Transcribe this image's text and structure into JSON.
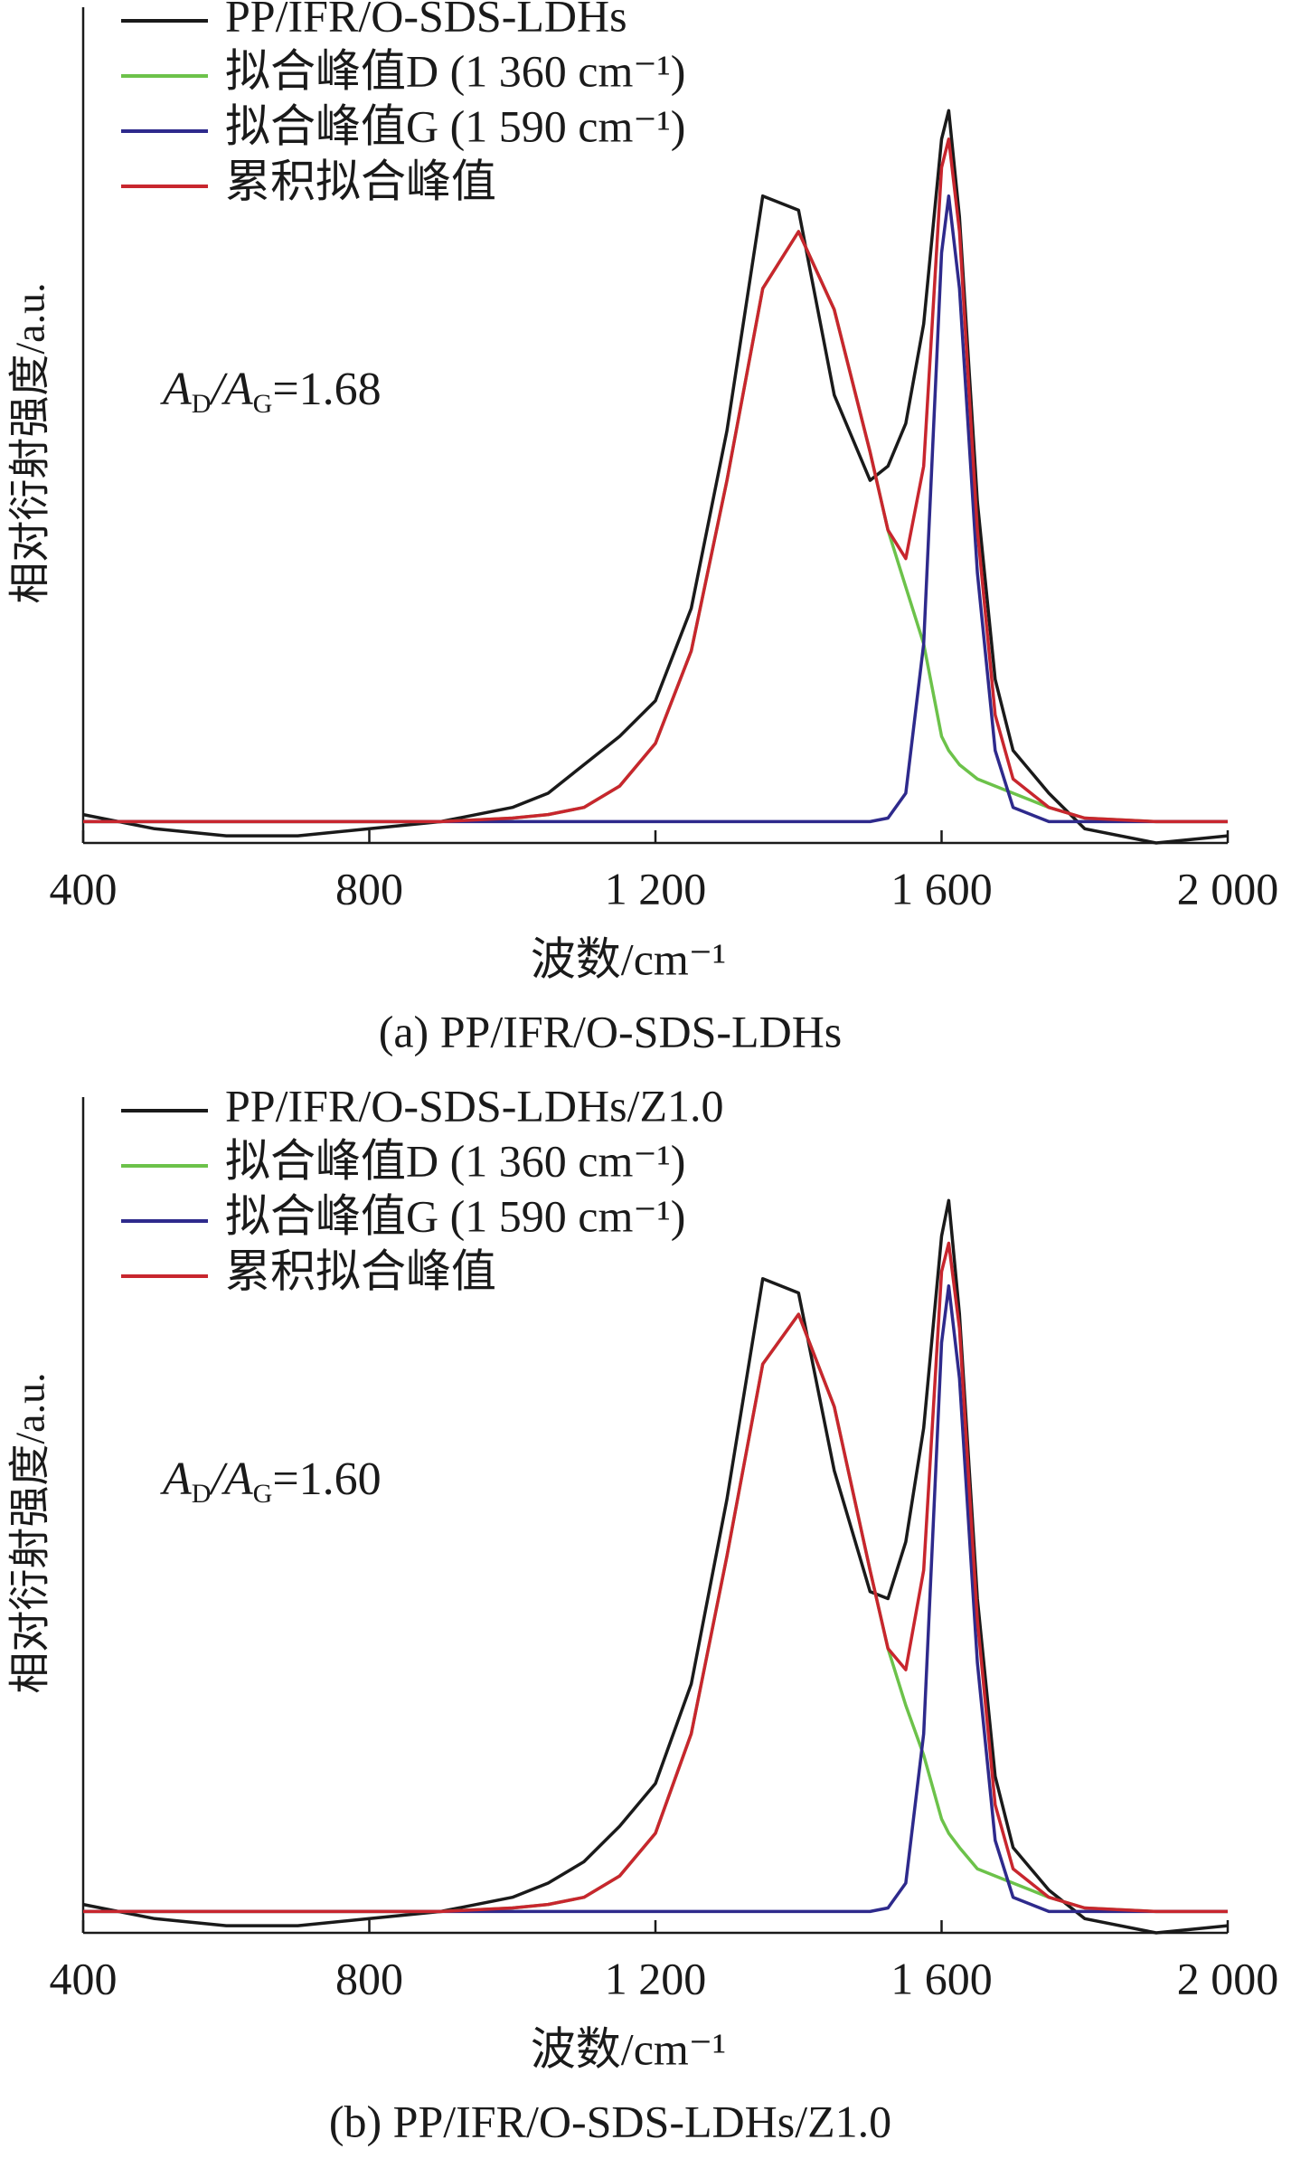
{
  "chart_data": [
    {
      "type": "line",
      "caption": "(a) PP/IFR/O-SDS-LDHs",
      "xlabel": "波数/cm⁻¹",
      "ylabel": "相对衍射强度/a.u.",
      "annotation": [
        "A",
        "D",
        "/A",
        "G",
        "=1.68"
      ],
      "xlim": [
        400,
        2000
      ],
      "xticks": [
        400,
        800,
        {
          "value": 1200,
          "label": "1 200"
        },
        {
          "value": 1600,
          "label": "1 600"
        },
        {
          "value": 2000,
          "label": "2 000"
        }
      ],
      "ylim": [
        -3,
        112
      ],
      "x": [
        400,
        500,
        600,
        700,
        800,
        900,
        1000,
        1050,
        1100,
        1150,
        1200,
        1250,
        1300,
        1350,
        1400,
        1450,
        1500,
        1525,
        1550,
        1575,
        1600,
        1610,
        1625,
        1650,
        1675,
        1700,
        1750,
        1800,
        1900,
        2000
      ],
      "series": [
        {
          "name": "PP/IFR/O-SDS-LDHs",
          "color": "#1a1a1a",
          "values": [
            1,
            -1,
            -2,
            -2,
            -1,
            0,
            2,
            4,
            8,
            12,
            17,
            30,
            55,
            88,
            86,
            60,
            48,
            50,
            56,
            70,
            96,
            100,
            85,
            45,
            20,
            10,
            4,
            -1,
            -3,
            -2
          ]
        },
        {
          "name": "拟合峰值D (1 360 cm⁻¹)",
          "color": "#6cc24a",
          "values": [
            0,
            0,
            0,
            0,
            0,
            0,
            0.5,
            1,
            2,
            5,
            11,
            24,
            48,
            75,
            83,
            72,
            52,
            41,
            33,
            25,
            12,
            10,
            8,
            6,
            5,
            4,
            2,
            0.5,
            0,
            0
          ]
        },
        {
          "name": "拟合峰值G (1 590 cm⁻¹)",
          "color": "#2e2a8c",
          "values": [
            0,
            0,
            0,
            0,
            0,
            0,
            0,
            0,
            0,
            0,
            0,
            0,
            0,
            0,
            0,
            0,
            0,
            0.5,
            4,
            25,
            80,
            88,
            75,
            35,
            10,
            2,
            0,
            0,
            0,
            0
          ]
        },
        {
          "name": "累积拟合峰值",
          "color": "#c8262e",
          "values": [
            0,
            0,
            0,
            0,
            0,
            0,
            0.5,
            1,
            2,
            5,
            11,
            24,
            48,
            75,
            83,
            72,
            52,
            41,
            37,
            50,
            92,
            96,
            83,
            41,
            15,
            6,
            2,
            0.5,
            0,
            0
          ]
        }
      ]
    },
    {
      "type": "line",
      "caption": "(b) PP/IFR/O-SDS-LDHs/Z1.0",
      "xlabel": "波数/cm⁻¹",
      "ylabel": "相对衍射强度/a.u.",
      "annotation": [
        "A",
        "D",
        "/A",
        "G",
        "=1.60"
      ],
      "xlim": [
        400,
        2000
      ],
      "xticks": [
        400,
        800,
        {
          "value": 1200,
          "label": "1 200"
        },
        {
          "value": 1600,
          "label": "1 600"
        },
        {
          "value": 2000,
          "label": "2 000"
        }
      ],
      "ylim": [
        -3,
        112
      ],
      "x": [
        400,
        500,
        600,
        700,
        800,
        900,
        1000,
        1050,
        1100,
        1150,
        1200,
        1250,
        1300,
        1350,
        1400,
        1450,
        1500,
        1525,
        1550,
        1575,
        1600,
        1610,
        1625,
        1650,
        1675,
        1700,
        1750,
        1800,
        1900,
        2000
      ],
      "series": [
        {
          "name": "PP/IFR/O-SDS-LDHs/Z1.0",
          "color": "#1a1a1a",
          "values": [
            1,
            -1,
            -2,
            -2,
            -1,
            0,
            2,
            4,
            7,
            12,
            18,
            32,
            58,
            89,
            87,
            62,
            45,
            44,
            52,
            68,
            95,
            100,
            84,
            44,
            19,
            9,
            3,
            -1,
            -3,
            -2
          ]
        },
        {
          "name": "拟合峰值D (1 360 cm⁻¹)",
          "color": "#6cc24a",
          "values": [
            0,
            0,
            0,
            0,
            0,
            0,
            0.5,
            1,
            2,
            5,
            11,
            25,
            50,
            77,
            84,
            71,
            48,
            37,
            29,
            22,
            13,
            11,
            9,
            6,
            5,
            4,
            2,
            0.5,
            0,
            0
          ]
        },
        {
          "name": "拟合峰值G (1 590 cm⁻¹)",
          "color": "#2e2a8c",
          "values": [
            0,
            0,
            0,
            0,
            0,
            0,
            0,
            0,
            0,
            0,
            0,
            0,
            0,
            0,
            0,
            0,
            0,
            0.5,
            4,
            25,
            80,
            88,
            75,
            35,
            10,
            2,
            0,
            0,
            0,
            0
          ]
        },
        {
          "name": "累积拟合峰值",
          "color": "#c8262e",
          "values": [
            0,
            0,
            0,
            0,
            0,
            0,
            0.5,
            1,
            2,
            5,
            11,
            25,
            50,
            77,
            84,
            71,
            48,
            37,
            34,
            48,
            90,
            94,
            82,
            41,
            15,
            6,
            2,
            0.5,
            0,
            0
          ]
        }
      ]
    }
  ]
}
